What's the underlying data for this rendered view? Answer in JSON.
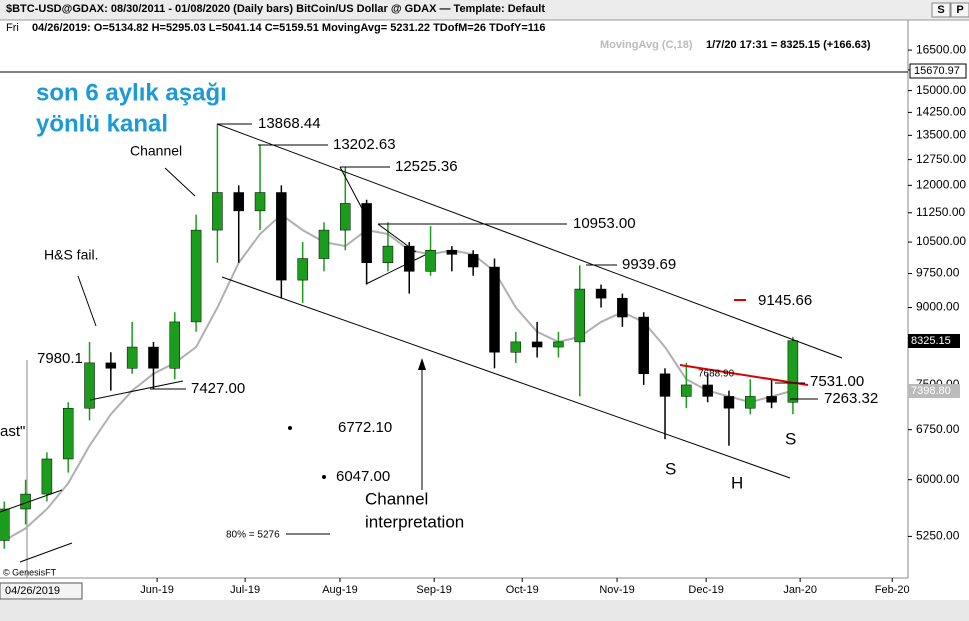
{
  "header": {
    "title": "$BTC-USD@GDAX:  08/30/2011 - 01/08/2020  (Daily bars)   BitCoin/US Dollar @ GDAX   —   Template: Default",
    "day": "Fri",
    "ohlc": "04/26/2019:  O=5134.82  H=5295.03  L=5041.14  C=5159.51  MovingAvg= 5231.22  TDofM=26  TDofY=116",
    "buttons": [
      "S",
      "P"
    ]
  },
  "chart_data": {
    "type": "candlestick",
    "indicator": "MovingAvg (C,18)",
    "last_quote": "1/7/20 17:31 = 8325.15 (+166.63)",
    "price_tags": [
      "15670.97",
      "8325.15",
      "7398.80"
    ],
    "date_box": "04/26/2019",
    "copyright": "© GenesisFT",
    "annotations": {
      "title_line1": "son 6 aylık aşağı",
      "title_line2": "yönlü kanal",
      "channel": "Channel",
      "hs_fail": "H&S fail.",
      "interp1": "Channel",
      "interp2": "interpretation",
      "s1": "S",
      "h": "H",
      "s2": "S",
      "ast": "ast\"",
      "prices": [
        "13868.44",
        "13202.63",
        "12525.36",
        "10953.00",
        "9939.69",
        "9145.66",
        "7980.1",
        "7427.00",
        "6772.10",
        "6047.00",
        "7531.00",
        "7263.32",
        "7688.90",
        "80% = 5276"
      ]
    },
    "categories": [
      null,
      null,
      null,
      null,
      null,
      null,
      null,
      null,
      null,
      null,
      null,
      null,
      null,
      null,
      null,
      null,
      null,
      null,
      null,
      null,
      null,
      null,
      null,
      null,
      null,
      null,
      null,
      null,
      null,
      null,
      null,
      null,
      null,
      null,
      null,
      null,
      null,
      null
    ],
    "open": [
      5200,
      5600,
      5800,
      6300,
      7100,
      7900,
      7800,
      8200,
      7800,
      8700,
      10800,
      11800,
      11300,
      11800,
      9600,
      10100,
      10800,
      11500,
      10000,
      10400,
      9800,
      10300,
      10200,
      9900,
      8100,
      8300,
      8200,
      8300,
      9400,
      9200,
      8800,
      7700,
      7300,
      7500,
      7300,
      7100,
      7300,
      7200
    ],
    "high": [
      5700,
      6000,
      6400,
      7200,
      8300,
      8100,
      8700,
      8300,
      8900,
      11200,
      13868,
      12000,
      13202,
      12000,
      10500,
      11000,
      12525,
      11600,
      11000,
      10500,
      10900,
      10400,
      10300,
      10100,
      8500,
      8700,
      8500,
      9939,
      9500,
      9300,
      8900,
      7800,
      7900,
      7700,
      7400,
      7600,
      7600,
      8400
    ],
    "low": [
      5100,
      5400,
      5700,
      6100,
      6900,
      7400,
      7700,
      7427,
      7600,
      8500,
      10000,
      10000,
      10800,
      9200,
      9100,
      9800,
      10300,
      9500,
      9800,
      9300,
      9700,
      9800,
      9700,
      7800,
      7900,
      8000,
      8000,
      7300,
      9000,
      8600,
      7500,
      6600,
      7100,
      7200,
      6500,
      7000,
      7100,
      7000
    ],
    "close": [
      5600,
      5800,
      6300,
      7100,
      7900,
      7800,
      8200,
      7800,
      8700,
      10800,
      11800,
      11300,
      11800,
      9600,
      10100,
      10800,
      11500,
      10000,
      10400,
      9800,
      10300,
      10200,
      9900,
      8100,
      8300,
      8200,
      8300,
      9400,
      9200,
      8800,
      7700,
      7300,
      7500,
      7300,
      7100,
      7300,
      7200,
      8325
    ],
    "ma": [
      5200,
      5350,
      5600,
      5950,
      6500,
      7000,
      7400,
      7700,
      7900,
      8200,
      9000,
      10000,
      10700,
      11200,
      10800,
      10500,
      10400,
      10800,
      10700,
      10300,
      10200,
      10300,
      10200,
      9800,
      9000,
      8500,
      8300,
      8400,
      8700,
      8900,
      8700,
      8200,
      7600,
      7400,
      7300,
      7200,
      7300,
      7400
    ],
    "up_color": "#1c9c1c",
    "down_color": "#000000",
    "ma_color": "#b0b0b0",
    "log_scale": true,
    "ylim": [
      4760,
      17630
    ],
    "yticks": [
      {
        "value": 5250,
        "label": "5250.00"
      },
      {
        "value": 6000,
        "label": "6000.00"
      },
      {
        "value": 6750,
        "label": "6750.00"
      },
      {
        "value": 7500,
        "label": "7500.00"
      },
      {
        "value": 8250,
        "label": "8250.00"
      },
      {
        "value": 9000,
        "label": "9000.00"
      },
      {
        "value": 9750,
        "label": "9750.00"
      },
      {
        "value": 10500,
        "label": "10500.00"
      },
      {
        "value": 11250,
        "label": "11250.00"
      },
      {
        "value": 12000,
        "label": "12000.00"
      },
      {
        "value": 12750,
        "label": "12750.00"
      },
      {
        "value": 13500,
        "label": "13500.00"
      },
      {
        "value": 14250,
        "label": "14250.00"
      },
      {
        "value": 15000,
        "label": "15000.00"
      },
      {
        "value": 15750,
        "label": "15750.00"
      },
      {
        "value": 16500,
        "label": "16500.00"
      }
    ],
    "xlim": [
      -0.2,
      42.4
    ],
    "xticks": [
      {
        "value": 7.17,
        "label": "Jun-19"
      },
      {
        "value": 11.3,
        "label": "Jul-19"
      },
      {
        "value": 15.75,
        "label": "Aug-19"
      },
      {
        "value": 20.17,
        "label": "Sep-19"
      },
      {
        "value": 24.3,
        "label": "Oct-19"
      },
      {
        "value": 28.75,
        "label": "Nov-19"
      },
      {
        "value": 32.93,
        "label": "Dec-19"
      },
      {
        "value": 37.34,
        "label": "Jan-20"
      },
      {
        "value": 41.66,
        "label": "Feb-20"
      }
    ]
  }
}
